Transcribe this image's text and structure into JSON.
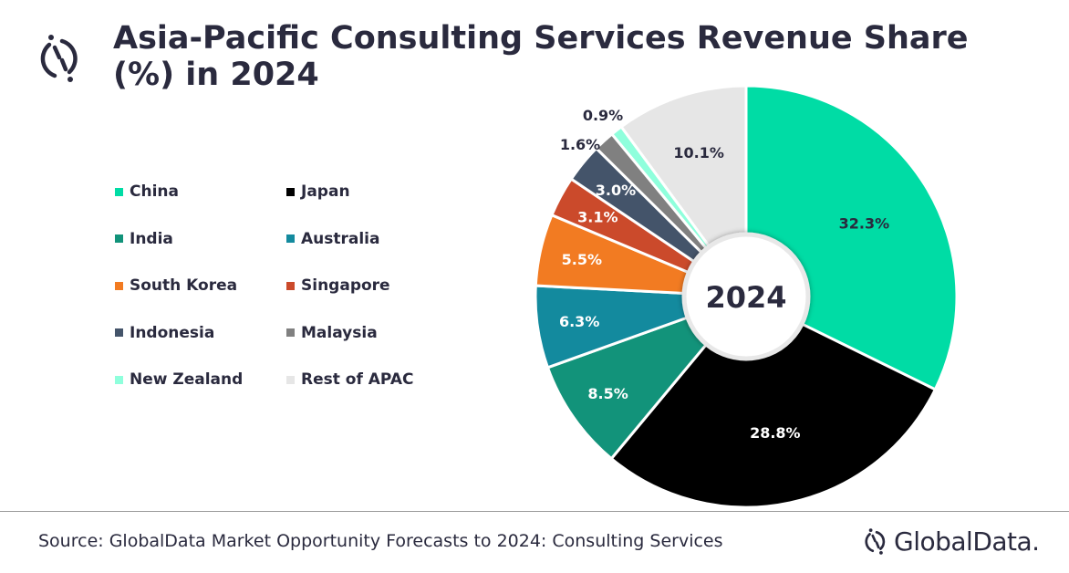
{
  "chart_data": {
    "type": "pie",
    "donut": true,
    "title": "Asia-Pacific Consulting Services Revenue Share (%) in 2024",
    "center_label": "2024",
    "legend_position": "left",
    "categories": [
      "China",
      "Japan",
      "India",
      "Australia",
      "South Korea",
      "Singapore",
      "Indonesia",
      "Malaysia",
      "New Zealand",
      "Rest of APAC"
    ],
    "values": [
      32.3,
      28.8,
      8.5,
      6.3,
      5.5,
      3.1,
      3.0,
      1.6,
      0.9,
      10.1
    ],
    "labels": [
      "32.3%",
      "28.8%",
      "8.5%",
      "6.3%",
      "5.5%",
      "3.1%",
      "3.0%",
      "1.6%",
      "0.9%",
      "10.1%"
    ],
    "colors": [
      "#00DCA5",
      "#000000",
      "#12937A",
      "#138A9E",
      "#F27B22",
      "#CB4A2B",
      "#44546A",
      "#808080",
      "#8FFFDC",
      "#E6E6E6"
    ],
    "label_colors": [
      "#2a2a3e",
      "#ffffff",
      "#ffffff",
      "#ffffff",
      "#ffffff",
      "#ffffff",
      "#ffffff",
      "#2a2a3e",
      "#2a2a3e",
      "#2a2a3e"
    ]
  },
  "footer": {
    "source": "Source: GlobalData Market Opportunity Forecasts to 2024: Consulting Services",
    "brand": "GlobalData."
  },
  "icons": {
    "logo": "globaldata-logo-icon"
  }
}
